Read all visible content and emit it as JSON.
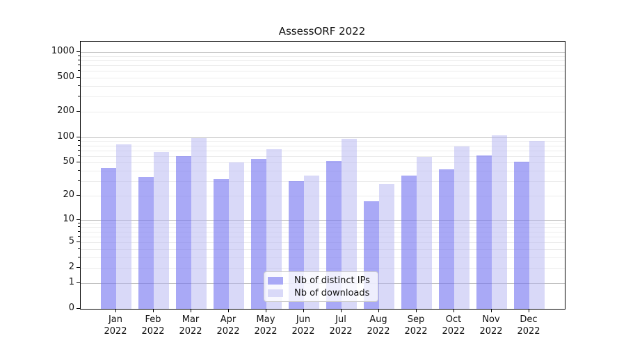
{
  "title": "AssessORF 2022",
  "chart_data": {
    "type": "bar",
    "title": "AssessORF 2022",
    "categories": [
      "Jan",
      "Feb",
      "Mar",
      "Apr",
      "May",
      "Jun",
      "Jul",
      "Aug",
      "Sep",
      "Oct",
      "Nov",
      "Dec"
    ],
    "year_label": "2022",
    "series": [
      {
        "name": "Nb of distinct IPs",
        "color": "#a9a9f6",
        "values": [
          43,
          34,
          60,
          32,
          55,
          30,
          52,
          17,
          35,
          42,
          61,
          51
        ]
      },
      {
        "name": "Nb of downloads",
        "color": "#d9d9f8",
        "values": [
          82,
          67,
          98,
          50,
          72,
          35,
          96,
          28,
          59,
          78,
          105,
          91
        ]
      }
    ],
    "yscale": "log1p",
    "yticks": [
      0,
      1,
      2,
      5,
      10,
      20,
      50,
      100,
      200,
      500,
      1000
    ],
    "ylim": [
      0,
      1000
    ],
    "grid": true,
    "legend_position": "bottom-center",
    "colors": {
      "major_gridline": "#c3c3c3",
      "minor_gridline": "#ececec",
      "axis": "#000000",
      "text": "#111111"
    }
  }
}
